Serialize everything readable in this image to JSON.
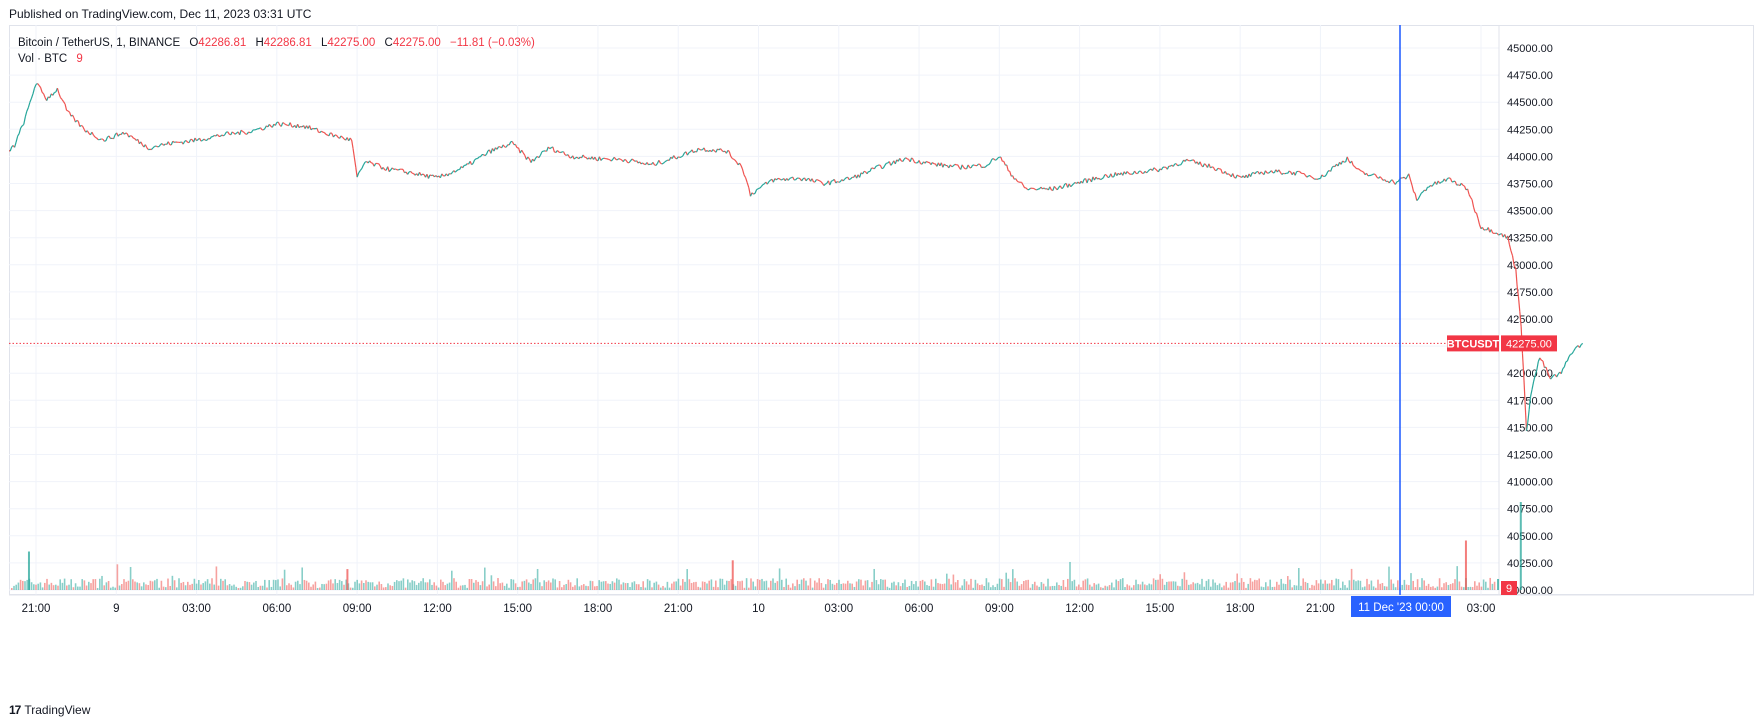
{
  "header": {
    "published": "Published on TradingView.com, Dec 11, 2023 03:31 UTC"
  },
  "legend": {
    "symbol": "Bitcoin / TetherUS, 1, BINANCE",
    "o_label": "O",
    "o_value": "42286.81",
    "h_label": "H",
    "h_value": "42286.81",
    "l_label": "L",
    "l_value": "42275.00",
    "c_label": "C",
    "c_value": "42275.00",
    "change": "−11.81 (−0.03%)",
    "vol_label": "Vol · BTC",
    "vol_value": "9"
  },
  "footer": {
    "brand": "TradingView",
    "logo": "17"
  },
  "colors": {
    "up": "#26a69a",
    "down": "#ef5350",
    "crosshair": "#2962ff",
    "last_price": "#f23645",
    "grid": "#f0f3fa"
  },
  "chart_data": {
    "type": "line",
    "symbol": "BTCUSDT",
    "last_price": 42275.0,
    "last_price_label": "42275.00",
    "volume_badge": "9",
    "ylim": [
      40000,
      45000
    ],
    "y_ticks": [
      "45000.00",
      "44750.00",
      "44500.00",
      "44250.00",
      "44000.00",
      "43750.00",
      "43500.00",
      "43250.00",
      "43000.00",
      "42750.00",
      "42500.00",
      "42250.00",
      "42000.00",
      "41750.00",
      "41500.00",
      "41250.00",
      "41000.00",
      "40750.00",
      "40500.00",
      "40250.00",
      "40000.00"
    ],
    "x_range_hours": [
      -4.35,
      27.1
    ],
    "x_ticks": [
      {
        "t": -3,
        "label": "21:00"
      },
      {
        "t": 0,
        "label": "9"
      },
      {
        "t": 3,
        "label": "03:00"
      },
      {
        "t": 6,
        "label": "06:00"
      },
      {
        "t": 9,
        "label": "09:00"
      },
      {
        "t": 12,
        "label": "12:00"
      },
      {
        "t": 15,
        "label": "15:00"
      },
      {
        "t": 18,
        "label": "18:00"
      },
      {
        "t": 21,
        "label": "21:00"
      },
      {
        "t": 24,
        "label": "10"
      },
      {
        "t": 27,
        "label": "03:00"
      },
      {
        "t": 30,
        "label": "06:00"
      },
      {
        "t": 33,
        "label": "09:00"
      },
      {
        "t": 36,
        "label": "12:00"
      },
      {
        "t": 39,
        "label": "15:00"
      },
      {
        "t": 42,
        "label": "18:00"
      },
      {
        "t": 45,
        "label": "21:00"
      },
      {
        "t": 51,
        "label": "03:00"
      }
    ],
    "crosshair_label": "11 Dec '23   00:00",
    "price_path": [
      [
        -4.35,
        43970
      ],
      [
        -3.8,
        44100
      ],
      [
        -3.4,
        44350
      ],
      [
        -3.0,
        44680
      ],
      [
        -2.6,
        44530
      ],
      [
        -2.2,
        44620
      ],
      [
        -1.8,
        44400
      ],
      [
        -1.2,
        44250
      ],
      [
        -0.5,
        44150
      ],
      [
        0.3,
        44220
      ],
      [
        1.2,
        44080
      ],
      [
        2.0,
        44120
      ],
      [
        3.0,
        44150
      ],
      [
        4.0,
        44200
      ],
      [
        5.0,
        44230
      ],
      [
        6.0,
        44300
      ],
      [
        7.0,
        44280
      ],
      [
        8.0,
        44200
      ],
      [
        8.8,
        44150
      ],
      [
        9.0,
        43800
      ],
      [
        9.3,
        43950
      ],
      [
        10.2,
        43880
      ],
      [
        11.0,
        43850
      ],
      [
        12.0,
        43800
      ],
      [
        13.0,
        43900
      ],
      [
        14.0,
        44050
      ],
      [
        14.8,
        44120
      ],
      [
        15.5,
        43950
      ],
      [
        16.2,
        44080
      ],
      [
        17.0,
        44000
      ],
      [
        18.0,
        43980
      ],
      [
        19.0,
        43970
      ],
      [
        20.0,
        43920
      ],
      [
        21.0,
        44000
      ],
      [
        21.8,
        44070
      ],
      [
        22.8,
        44050
      ],
      [
        23.4,
        43900
      ],
      [
        23.7,
        43650
      ],
      [
        24.5,
        43780
      ],
      [
        25.5,
        43800
      ],
      [
        26.5,
        43750
      ],
      [
        27.5,
        43800
      ],
      [
        28.5,
        43900
      ],
      [
        29.5,
        43980
      ],
      [
        30.5,
        43930
      ],
      [
        31.5,
        43900
      ],
      [
        32.5,
        43920
      ],
      [
        33.0,
        44000
      ],
      [
        33.5,
        43820
      ],
      [
        34.0,
        43700
      ],
      [
        35.0,
        43700
      ],
      [
        36.0,
        43760
      ],
      [
        37.0,
        43820
      ],
      [
        38.0,
        43850
      ],
      [
        39.0,
        43880
      ],
      [
        40.0,
        43960
      ],
      [
        41.0,
        43900
      ],
      [
        42.0,
        43800
      ],
      [
        43.0,
        43860
      ],
      [
        44.0,
        43850
      ],
      [
        45.0,
        43800
      ],
      [
        45.6,
        43920
      ],
      [
        46.0,
        43980
      ],
      [
        46.5,
        43850
      ],
      [
        47.0,
        43820
      ],
      [
        47.8,
        43760
      ],
      [
        48.3,
        43820
      ],
      [
        48.6,
        43600
      ],
      [
        49.0,
        43720
      ],
      [
        49.8,
        43790
      ],
      [
        50.5,
        43700
      ],
      [
        51.0,
        43350
      ],
      [
        51.6,
        43300
      ],
      [
        52.0,
        43250
      ],
      [
        52.3,
        42950
      ],
      [
        52.5,
        42450
      ],
      [
        52.7,
        41450
      ],
      [
        52.85,
        41800
      ],
      [
        53.2,
        42150
      ],
      [
        53.6,
        41950
      ],
      [
        54.0,
        42000
      ],
      [
        54.4,
        42200
      ],
      [
        54.8,
        42275
      ]
    ],
    "volume_spikes": [
      {
        "t": -3.3,
        "v": 70,
        "c": "up"
      },
      {
        "t": 8.6,
        "v": 38,
        "c": "down"
      },
      {
        "t": 23.0,
        "v": 54,
        "c": "down"
      },
      {
        "t": 50.4,
        "v": 90,
        "c": "down"
      },
      {
        "t": 52.45,
        "v": 160,
        "c": "up"
      },
      {
        "t": 51.6,
        "v": 20,
        "c": "up"
      }
    ]
  }
}
